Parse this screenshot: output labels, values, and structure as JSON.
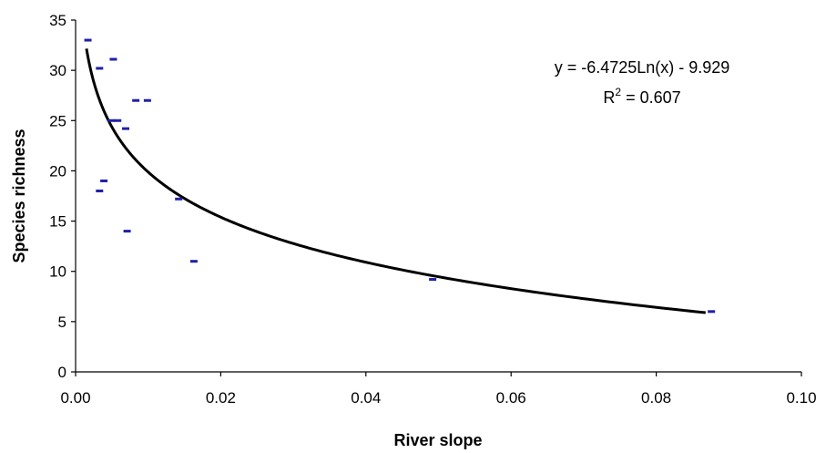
{
  "chart_data": {
    "type": "scatter",
    "xlabel": "River slope",
    "ylabel": "Species richness",
    "xlim": [
      0,
      0.1
    ],
    "ylim": [
      0,
      35
    ],
    "x_ticks": [
      "0.00",
      "0.02",
      "0.04",
      "0.06",
      "0.08",
      "0.10"
    ],
    "y_ticks": [
      "0",
      "5",
      "10",
      "15",
      "20",
      "25",
      "30",
      "35"
    ],
    "grid": false,
    "series": [
      {
        "marker": "dash",
        "color": "#2020a8",
        "points": [
          {
            "x": 0.0017,
            "y": 33
          },
          {
            "x": 0.0033,
            "y": 30.2
          },
          {
            "x": 0.0052,
            "y": 31.1
          },
          {
            "x": 0.0049,
            "y": 25
          },
          {
            "x": 0.0058,
            "y": 25
          },
          {
            "x": 0.0069,
            "y": 24.2
          },
          {
            "x": 0.0083,
            "y": 27
          },
          {
            "x": 0.0099,
            "y": 27
          },
          {
            "x": 0.0033,
            "y": 18
          },
          {
            "x": 0.0039,
            "y": 19
          },
          {
            "x": 0.0071,
            "y": 14
          },
          {
            "x": 0.0142,
            "y": 17.2
          },
          {
            "x": 0.0163,
            "y": 11
          },
          {
            "x": 0.0492,
            "y": 9.2
          },
          {
            "x": 0.0876,
            "y": 6
          }
        ]
      }
    ],
    "trendline": {
      "type": "log",
      "a": -6.4725,
      "b": -9.929,
      "x_range": [
        0.0015,
        0.0868
      ],
      "color": "#000000"
    },
    "annotations": {
      "equation": "y = -6.4725Ln(x) - 9.929",
      "r2_prefix": "R",
      "r2_sup": "2",
      "r2_suffix": " = 0.607"
    }
  }
}
